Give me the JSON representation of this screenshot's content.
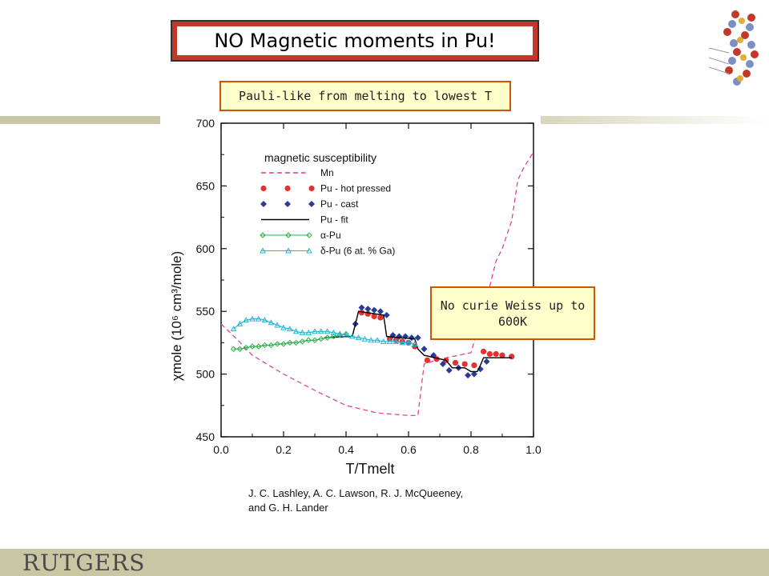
{
  "slide": {
    "title": "NO Magnetic moments in Pu!",
    "subtitle": "Pauli-like from melting to lowest T",
    "note": "No curie Weiss up to 600K",
    "citation_line1": "J. C. Lashley, A. C. Lawson, R. J. McQueeney,",
    "citation_line2": "and G. H. Lander",
    "logo_text": "RUTGERS",
    "colors": {
      "title_border": "#c0392b",
      "callout_fill": "#ffffcc",
      "callout_border": "#d35400",
      "band": "#c9c7a3"
    },
    "icons": {
      "top_right": "crystal-lattice-icon"
    }
  },
  "chart_data": {
    "type": "scatter",
    "title": "",
    "xlabel": "T/Tmelt",
    "ylabel": "χmole (10⁶ cm³/mole)",
    "xlim": [
      0.0,
      1.0
    ],
    "ylim": [
      450,
      700
    ],
    "xticks": [
      "0.0",
      "0.2",
      "0.4",
      "0.6",
      "0.8",
      "1.0"
    ],
    "yticks": [
      "450",
      "500",
      "550",
      "600",
      "650",
      "700"
    ],
    "legend_title": "magnetic susceptibility",
    "legend_position": "top-left",
    "series": [
      {
        "name": "Mn",
        "style": "dashed-line",
        "color": "#e0388a",
        "x": [
          0.0,
          0.05,
          0.1,
          0.2,
          0.3,
          0.4,
          0.5,
          0.6,
          0.63,
          0.65,
          0.7,
          0.8,
          0.85,
          0.88,
          0.9,
          0.93,
          0.95,
          0.97,
          1.0
        ],
        "y": [
          540,
          528,
          515,
          500,
          487,
          475,
          469,
          467,
          467,
          508,
          512,
          517,
          560,
          590,
          600,
          622,
          655,
          665,
          677
        ]
      },
      {
        "name": "Pu - hot pressed",
        "style": "circle",
        "color": "#e53030",
        "x": [
          0.45,
          0.47,
          0.49,
          0.51,
          0.54,
          0.56,
          0.58,
          0.6,
          0.62,
          0.66,
          0.69,
          0.72,
          0.75,
          0.78,
          0.81,
          0.84,
          0.86,
          0.88,
          0.9,
          0.93
        ],
        "y": [
          549,
          548,
          546,
          545,
          528,
          527,
          526,
          525,
          522,
          511,
          512,
          511,
          509,
          508,
          507,
          518,
          516,
          516,
          515,
          514
        ]
      },
      {
        "name": "Pu - cast",
        "style": "diamond",
        "color": "#2a3a9a",
        "x": [
          0.43,
          0.45,
          0.47,
          0.49,
          0.51,
          0.53,
          0.55,
          0.57,
          0.59,
          0.61,
          0.63,
          0.65,
          0.68,
          0.71,
          0.73,
          0.76,
          0.79,
          0.81,
          0.83,
          0.85
        ],
        "y": [
          540,
          553,
          552,
          551,
          550,
          547,
          531,
          530,
          530,
          529,
          529,
          520,
          515,
          508,
          503,
          505,
          499,
          500,
          504,
          510
        ]
      },
      {
        "name": "Pu - fit",
        "style": "solid-line",
        "color": "#000000",
        "x": [
          0.33,
          0.42,
          0.43,
          0.44,
          0.52,
          0.53,
          0.62,
          0.63,
          0.65,
          0.72,
          0.74,
          0.78,
          0.8,
          0.82,
          0.83,
          0.84,
          0.93
        ],
        "y": [
          529,
          530,
          540,
          550,
          547,
          530,
          528,
          520,
          515,
          511,
          505,
          505,
          502,
          502,
          507,
          513,
          513
        ]
      },
      {
        "name": "α-Pu",
        "style": "open-diamond-line",
        "color": "#2db04a",
        "x": [
          0.04,
          0.06,
          0.08,
          0.1,
          0.12,
          0.14,
          0.16,
          0.18,
          0.2,
          0.22,
          0.24,
          0.26,
          0.28,
          0.3,
          0.32,
          0.34,
          0.36,
          0.38,
          0.4
        ],
        "y": [
          520,
          520,
          521,
          522,
          522,
          523,
          523,
          524,
          524,
          525,
          525,
          526,
          527,
          527,
          528,
          529,
          530,
          531,
          532
        ]
      },
      {
        "name": "δ-Pu (6 at. % Ga)",
        "style": "open-triangle-line",
        "color": "#21b6d6",
        "x": [
          0.04,
          0.06,
          0.08,
          0.1,
          0.12,
          0.14,
          0.16,
          0.18,
          0.2,
          0.22,
          0.24,
          0.26,
          0.28,
          0.3,
          0.32,
          0.34,
          0.36,
          0.38,
          0.4,
          0.42,
          0.44,
          0.46,
          0.48,
          0.5,
          0.52,
          0.54,
          0.56,
          0.58,
          0.6,
          0.62
        ],
        "y": [
          536,
          540,
          543,
          544,
          544,
          543,
          541,
          539,
          537,
          536,
          534,
          533,
          533,
          534,
          534,
          534,
          533,
          532,
          531,
          530,
          529,
          528,
          527,
          527,
          526,
          526,
          526,
          525,
          525,
          524
        ]
      }
    ]
  }
}
